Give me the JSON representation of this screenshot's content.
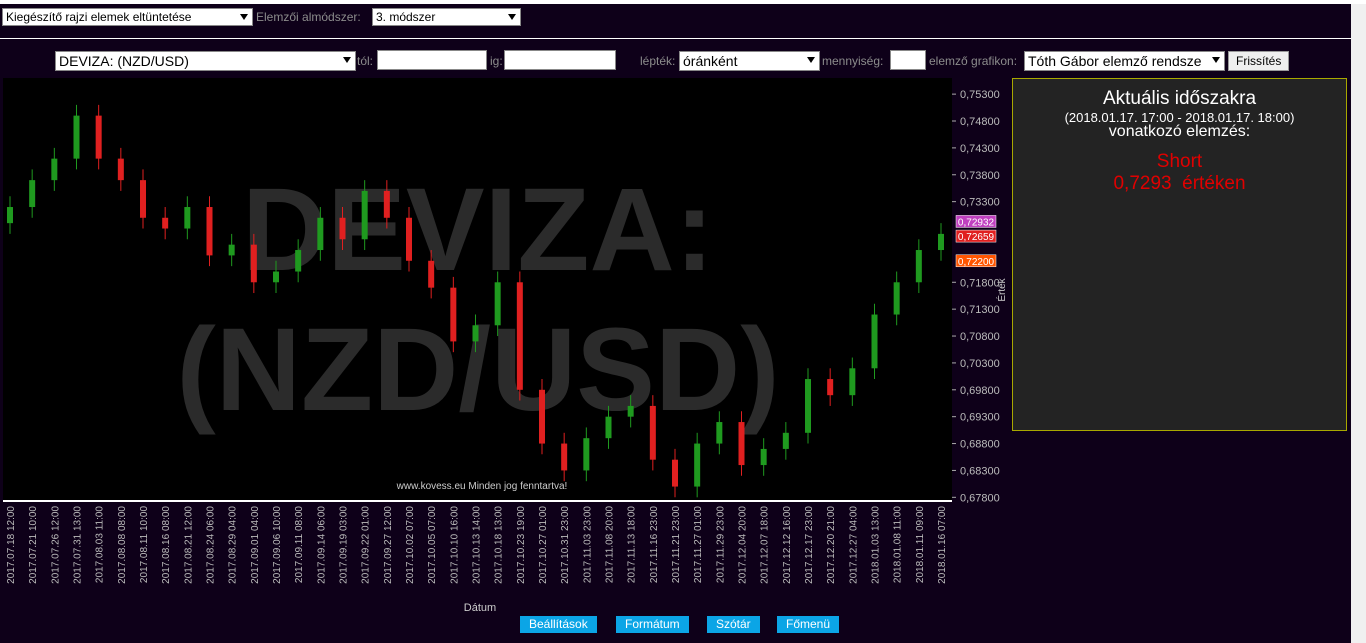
{
  "toolbar": {
    "overlay_select": "Kiegészítő rajzi elemek eltüntetése",
    "submethod_label": "Elemzői almódszer:",
    "submethod_select": "3. módszer"
  },
  "filters": {
    "instrument": "DEVIZA: (NZD/USD)",
    "from_label": "tól:",
    "to_label": "ig:",
    "scale_label": "lépték:",
    "scale_select": "óránként",
    "quantity_label": "mennyiség:",
    "chart_label": "elemző grafikon:",
    "chart_select": "Tóth Gábor elemző rendsze",
    "refresh": "Frissítés"
  },
  "chart_data": {
    "type": "candlestick",
    "watermark_lines": [
      "DEVIZA:",
      "(NZD/USD)"
    ],
    "copyright": "www.kovess.eu Minden jog fenntartva!",
    "y_label": "Érték",
    "x_label": "Dátum",
    "categories": [
      "2017.07.18 12:00",
      "2017.07.21 10:00",
      "2017.07.26 12:00",
      "2017.07.31 13:00",
      "2017.08.03 11:00",
      "2017.08.08 08:00",
      "2017.08.11 10:00",
      "2017.08.16 08:00",
      "2017.08.21 12:00",
      "2017.08.24 06:00",
      "2017.08.29 04:00",
      "2017.09.01 04:00",
      "2017.09.06 10:00",
      "2017.09.11 08:00",
      "2017.09.14 06:00",
      "2017.09.19 03:00",
      "2017.09.22 01:00",
      "2017.09.27 12:00",
      "2017.10.02 07:00",
      "2017.10.05 07:00",
      "2017.10.10 16:00",
      "2017.10.13 14:00",
      "2017.10.18 13:00",
      "2017.10.23 19:00",
      "2017.10.27 01:00",
      "2017.10.31 23:00",
      "2017.11.03 23:00",
      "2017.11.08 20:00",
      "2017.11.13 18:00",
      "2017.11.16 23:00",
      "2017.11.21 23:00",
      "2017.11.27 01:00",
      "2017.11.29 23:00",
      "2017.12.04 20:00",
      "2017.12.07 18:00",
      "2017.12.12 16:00",
      "2017.12.17 23:00",
      "2017.12.20 21:00",
      "2017.12.27 04:00",
      "2018.01.03 13:00",
      "2018.01.08 11:00",
      "2018.01.11 09:00",
      "2018.01.16 07:00"
    ],
    "open": [
      0.729,
      0.732,
      0.737,
      0.741,
      0.749,
      0.741,
      0.737,
      0.73,
      0.728,
      0.732,
      0.723,
      0.725,
      0.718,
      0.72,
      0.724,
      0.73,
      0.726,
      0.735,
      0.73,
      0.722,
      0.717,
      0.707,
      0.71,
      0.718,
      0.698,
      0.688,
      0.683,
      0.689,
      0.693,
      0.695,
      0.685,
      0.68,
      0.688,
      0.692,
      0.684,
      0.687,
      0.69,
      0.7,
      0.697,
      0.702,
      0.712,
      0.718,
      0.724
    ],
    "high": [
      0.734,
      0.739,
      0.743,
      0.751,
      0.751,
      0.743,
      0.739,
      0.732,
      0.734,
      0.734,
      0.727,
      0.727,
      0.722,
      0.726,
      0.732,
      0.732,
      0.737,
      0.737,
      0.732,
      0.724,
      0.719,
      0.712,
      0.72,
      0.72,
      0.7,
      0.69,
      0.691,
      0.695,
      0.697,
      0.697,
      0.687,
      0.69,
      0.694,
      0.694,
      0.689,
      0.692,
      0.702,
      0.702,
      0.704,
      0.714,
      0.72,
      0.726,
      0.729
    ],
    "low": [
      0.727,
      0.73,
      0.735,
      0.739,
      0.739,
      0.735,
      0.728,
      0.726,
      0.726,
      0.721,
      0.721,
      0.716,
      0.716,
      0.718,
      0.722,
      0.724,
      0.724,
      0.728,
      0.72,
      0.715,
      0.705,
      0.705,
      0.708,
      0.696,
      0.686,
      0.681,
      0.681,
      0.687,
      0.691,
      0.683,
      0.678,
      0.678,
      0.686,
      0.682,
      0.682,
      0.685,
      0.688,
      0.695,
      0.695,
      0.7,
      0.71,
      0.716,
      0.722
    ],
    "close": [
      0.732,
      0.737,
      0.741,
      0.749,
      0.741,
      0.737,
      0.73,
      0.728,
      0.732,
      0.723,
      0.725,
      0.718,
      0.72,
      0.724,
      0.73,
      0.726,
      0.735,
      0.73,
      0.722,
      0.717,
      0.707,
      0.71,
      0.718,
      0.698,
      0.688,
      0.683,
      0.689,
      0.693,
      0.695,
      0.685,
      0.68,
      0.688,
      0.692,
      0.684,
      0.687,
      0.69,
      0.7,
      0.697,
      0.702,
      0.712,
      0.718,
      0.724,
      0.727
    ],
    "up_color": "#1f9a1f",
    "down_color": "#e02020",
    "ylim": [
      0.6775,
      0.756
    ],
    "yticks": [
      {
        "value": 0.753,
        "label": "0,75300"
      },
      {
        "value": 0.748,
        "label": "0,74800"
      },
      {
        "value": 0.743,
        "label": "0,74300"
      },
      {
        "value": 0.738,
        "label": "0,73800"
      },
      {
        "value": 0.733,
        "label": "0,73300"
      },
      {
        "value": 0.718,
        "label": "0,71800"
      },
      {
        "value": 0.713,
        "label": "0,71300"
      },
      {
        "value": 0.708,
        "label": "0,70800"
      },
      {
        "value": 0.703,
        "label": "0,70300"
      },
      {
        "value": 0.698,
        "label": "0,69800"
      },
      {
        "value": 0.693,
        "label": "0,69300"
      },
      {
        "value": 0.688,
        "label": "0,68800"
      },
      {
        "value": 0.683,
        "label": "0,68300"
      },
      {
        "value": 0.678,
        "label": "0,67800"
      }
    ],
    "price_markers": [
      {
        "value": 0.72932,
        "label": "0,72932",
        "color": "#c040c0"
      },
      {
        "value": 0.72659,
        "label": "0,72659",
        "color": "#e02020"
      },
      {
        "value": 0.722,
        "label": "0,72200",
        "color": "#ff5500"
      }
    ]
  },
  "analysis": {
    "title": "Aktuális időszakra",
    "period": "(2018.01.17. 17:00 - 2018.01.17. 18:00)",
    "subtitle": "vonatkozó elemzés:",
    "signal": "Short",
    "price_text": "0,7293  értéken"
  },
  "footer": {
    "buttons": [
      "Beállítások",
      "Formátum",
      "Szótár",
      "Főmenü"
    ]
  }
}
